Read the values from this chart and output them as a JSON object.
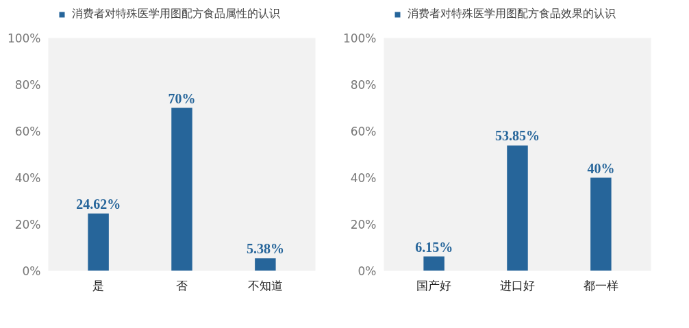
{
  "chart_data": [
    {
      "type": "bar",
      "categories": [
        "是",
        "否",
        "不知道"
      ],
      "series": [
        {
          "name": "消费者对特殊医学用图配方食品属性的认识",
          "color": "#26659a",
          "values": [
            24.62,
            70,
            5.38
          ],
          "value_labels": [
            "24.62%",
            "70%",
            "5.38%"
          ]
        }
      ],
      "ylim": [
        0,
        100
      ],
      "yticks": [
        {
          "value": 0,
          "label": "0%"
        },
        {
          "value": 20,
          "label": "20%"
        },
        {
          "value": 40,
          "label": "40%"
        },
        {
          "value": 60,
          "label": "60%"
        },
        {
          "value": 80,
          "label": "80%"
        },
        {
          "value": 100,
          "label": "100%"
        }
      ],
      "grid": false,
      "legend": "top"
    },
    {
      "type": "bar",
      "categories": [
        "国产好",
        "进口好",
        "都一样"
      ],
      "series": [
        {
          "name": "消费者对特殊医学用图配方食品效果的认识",
          "color": "#26659a",
          "values": [
            6.15,
            53.85,
            40
          ],
          "value_labels": [
            "6.15%",
            "53.85%",
            "40%"
          ]
        }
      ],
      "ylim": [
        0,
        100
      ],
      "yticks": [
        {
          "value": 0,
          "label": "0%"
        },
        {
          "value": 20,
          "label": "20%"
        },
        {
          "value": 40,
          "label": "40%"
        },
        {
          "value": 60,
          "label": "60%"
        },
        {
          "value": 80,
          "label": "80%"
        },
        {
          "value": 100,
          "label": "100%"
        }
      ],
      "grid": false,
      "legend": "top"
    }
  ]
}
